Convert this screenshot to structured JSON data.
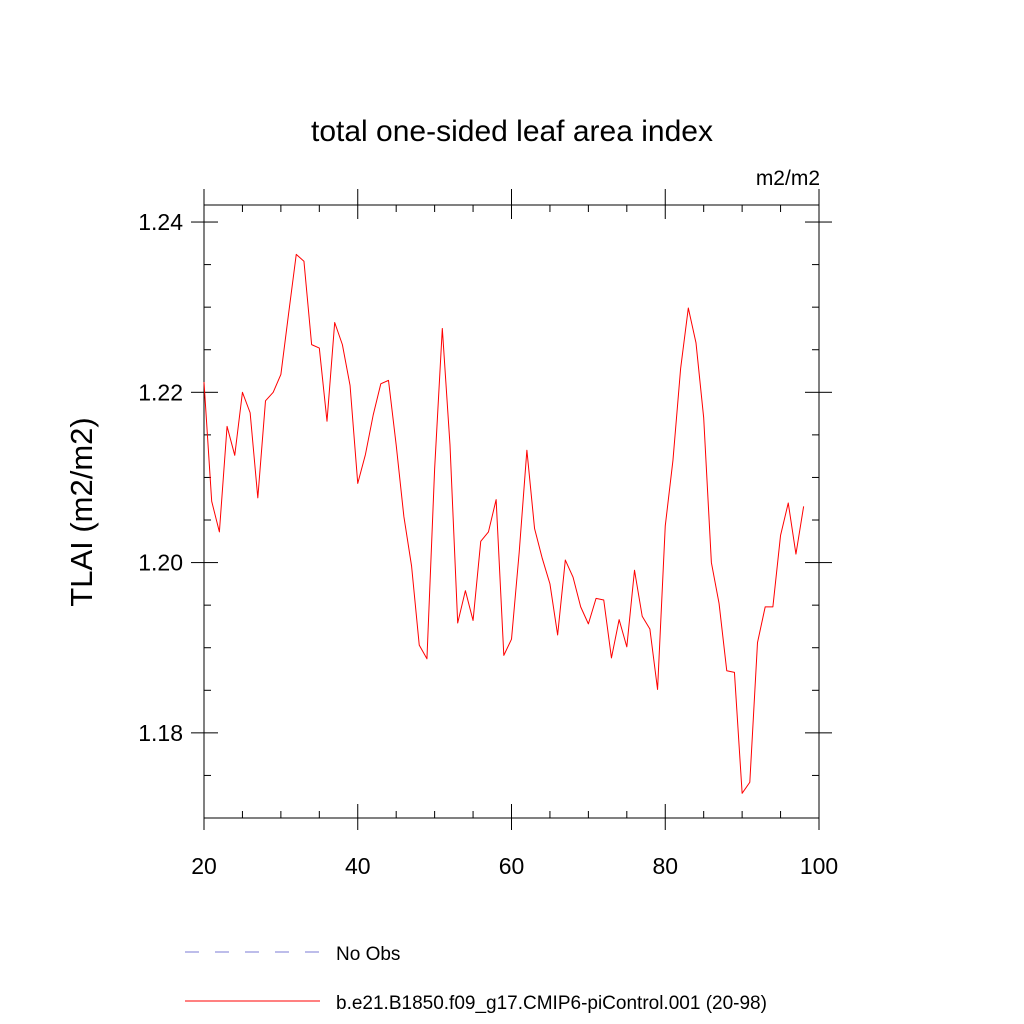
{
  "chart_data": {
    "type": "line",
    "title": "total one-sided leaf area index",
    "units": "m2/m2",
    "ylabel": "TLAI  (m2/m2)",
    "xlabel": "",
    "xlim": [
      20,
      100
    ],
    "ylim": [
      1.17,
      1.242
    ],
    "x_ticks": [
      20,
      40,
      60,
      80,
      100
    ],
    "x_tick_labels": [
      "20",
      "40",
      "60",
      "80",
      "100"
    ],
    "y_ticks": [
      1.18,
      1.2,
      1.22,
      1.24
    ],
    "y_tick_labels": [
      "1.18",
      "1.20",
      "1.22",
      "1.24"
    ],
    "legend": [
      {
        "label": "No Obs",
        "color": "#7b7bd6",
        "style": "dashed"
      },
      {
        "label": "b.e21.B1850.f09_g17.CMIP6-piControl.001 (20-98)",
        "color": "#ff0000",
        "style": "solid"
      }
    ],
    "series": [
      {
        "name": "b.e21.B1850.f09_g17.CMIP6-piControl.001 (20-98)",
        "color": "#ff0000",
        "x": [
          20,
          21,
          22,
          23,
          24,
          25,
          26,
          27,
          28,
          29,
          30,
          31,
          32,
          33,
          34,
          35,
          36,
          37,
          38,
          39,
          40,
          41,
          42,
          43,
          44,
          45,
          46,
          47,
          48,
          49,
          50,
          51,
          52,
          53,
          54,
          55,
          56,
          57,
          58,
          59,
          60,
          61,
          62,
          63,
          64,
          65,
          66,
          67,
          68,
          69,
          70,
          71,
          72,
          73,
          74,
          75,
          76,
          77,
          78,
          79,
          80,
          81,
          82,
          83,
          84,
          85,
          86,
          87,
          88,
          89,
          90,
          91,
          92,
          93,
          94,
          95,
          96,
          97,
          98
        ],
        "values": [
          1.2212,
          1.2072,
          1.2036,
          1.216,
          1.2126,
          1.22,
          1.2176,
          1.2076,
          1.219,
          1.22,
          1.2221,
          1.2292,
          1.2362,
          1.2354,
          1.2256,
          1.2252,
          1.2166,
          1.2282,
          1.2256,
          1.2208,
          1.2093,
          1.2127,
          1.2173,
          1.221,
          1.2214,
          1.2138,
          1.2054,
          1.1996,
          1.1903,
          1.1887,
          1.211,
          1.2275,
          1.2138,
          1.1929,
          1.1967,
          1.1932,
          1.2025,
          1.2036,
          1.2074,
          1.1891,
          1.191,
          1.2012,
          1.2132,
          1.204,
          1.2005,
          1.1975,
          1.1915,
          1.2003,
          1.1983,
          1.1948,
          1.1928,
          1.1958,
          1.1956,
          1.1888,
          1.1933,
          1.1901,
          1.1991,
          1.1937,
          1.1922,
          1.1851,
          1.2043,
          1.212,
          1.2228,
          1.2299,
          1.2258,
          1.217,
          1.2,
          1.1952,
          1.1873,
          1.1871,
          1.1729,
          1.1742,
          1.1906,
          1.1948,
          1.1948,
          1.2032,
          1.207,
          1.201,
          1.2066
        ]
      }
    ]
  }
}
